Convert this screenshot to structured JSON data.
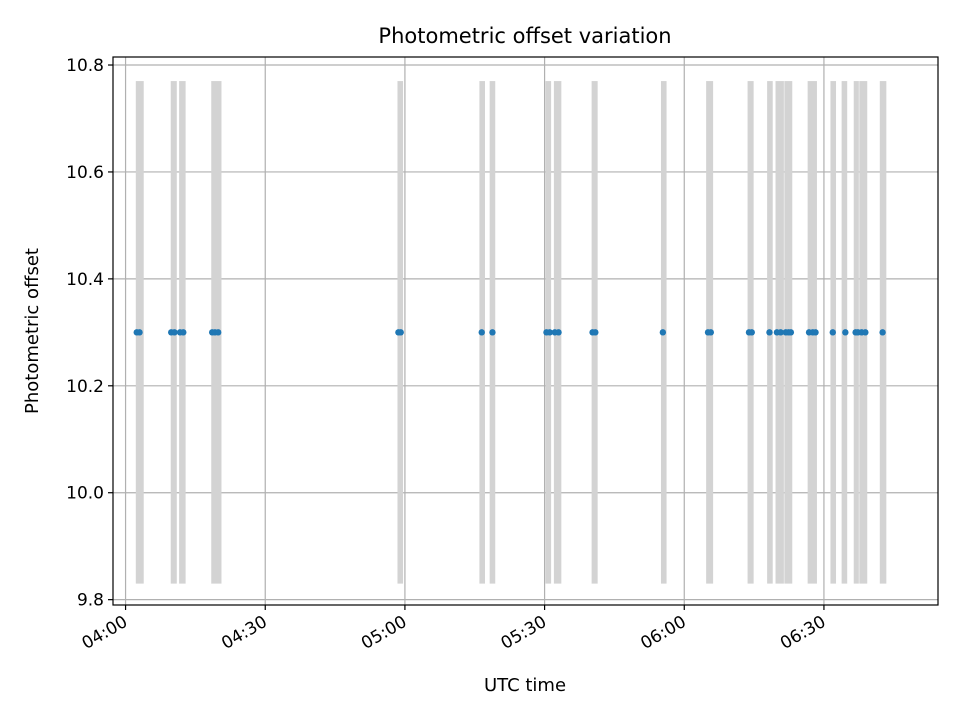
{
  "chart_data": {
    "type": "scatter",
    "title": "Photometric offset variation",
    "xlabel": "UTC time",
    "ylabel": "Photometric offset",
    "date": "",
    "xlim": [
      "03:57:18",
      "06:54:30"
    ],
    "ylim": [
      9.79,
      10.815
    ],
    "x_ticks": [
      "04:00",
      "04:30",
      "05:00",
      "05:30",
      "06:00",
      "06:30"
    ],
    "y_ticks": [
      9.8,
      10.0,
      10.2,
      10.4,
      10.6,
      10.8
    ],
    "grid": true,
    "band_range": [
      9.83,
      10.77
    ],
    "bands": [
      [
        "04:02:12",
        "04:03:54"
      ],
      [
        "04:09:42",
        "04:11:00"
      ],
      [
        "04:11:30",
        "04:12:54"
      ],
      [
        "04:18:24",
        "04:20:36"
      ],
      [
        "04:58:24",
        "04:59:36"
      ],
      [
        "05:16:00",
        "05:17:12"
      ],
      [
        "05:18:12",
        "05:19:24"
      ],
      [
        "05:30:12",
        "05:31:24"
      ],
      [
        "05:32:00",
        "05:33:36"
      ],
      [
        "05:40:06",
        "05:41:24"
      ],
      [
        "05:55:00",
        "05:56:12"
      ],
      [
        "06:04:42",
        "06:06:12"
      ],
      [
        "06:13:36",
        "06:14:54"
      ],
      [
        "06:17:48",
        "06:19:00"
      ],
      [
        "06:19:36",
        "06:21:24"
      ],
      [
        "06:21:30",
        "06:23:12"
      ],
      [
        "06:26:30",
        "06:28:30"
      ],
      [
        "06:31:24",
        "06:32:36"
      ],
      [
        "06:33:48",
        "06:35:00"
      ],
      [
        "06:36:24",
        "06:37:30"
      ],
      [
        "06:37:36",
        "06:39:18"
      ],
      [
        "06:42:00",
        "06:43:24"
      ]
    ],
    "series": [
      {
        "color": "#1f77b4",
        "points": [
          {
            "x": "04:02:24",
            "y": 10.3
          },
          {
            "x": "04:03:00",
            "y": 10.3
          },
          {
            "x": "04:09:48",
            "y": 10.3
          },
          {
            "x": "04:10:30",
            "y": 10.3
          },
          {
            "x": "04:11:42",
            "y": 10.3
          },
          {
            "x": "04:12:24",
            "y": 10.3
          },
          {
            "x": "04:18:36",
            "y": 10.3
          },
          {
            "x": "04:19:12",
            "y": 10.3
          },
          {
            "x": "04:19:54",
            "y": 10.3
          },
          {
            "x": "04:58:36",
            "y": 10.3
          },
          {
            "x": "04:59:06",
            "y": 10.3
          },
          {
            "x": "05:16:30",
            "y": 10.3
          },
          {
            "x": "05:18:48",
            "y": 10.3
          },
          {
            "x": "05:30:24",
            "y": 10.3
          },
          {
            "x": "05:31:06",
            "y": 10.3
          },
          {
            "x": "05:32:12",
            "y": 10.3
          },
          {
            "x": "05:33:00",
            "y": 10.3
          },
          {
            "x": "05:40:18",
            "y": 10.3
          },
          {
            "x": "05:40:54",
            "y": 10.3
          },
          {
            "x": "05:55:24",
            "y": 10.3
          },
          {
            "x": "06:05:06",
            "y": 10.3
          },
          {
            "x": "06:05:42",
            "y": 10.3
          },
          {
            "x": "06:13:54",
            "y": 10.3
          },
          {
            "x": "06:14:30",
            "y": 10.3
          },
          {
            "x": "06:18:18",
            "y": 10.3
          },
          {
            "x": "06:19:54",
            "y": 10.3
          },
          {
            "x": "06:20:42",
            "y": 10.3
          },
          {
            "x": "06:21:48",
            "y": 10.3
          },
          {
            "x": "06:22:24",
            "y": 10.3
          },
          {
            "x": "06:22:54",
            "y": 10.3
          },
          {
            "x": "06:26:48",
            "y": 10.3
          },
          {
            "x": "06:27:36",
            "y": 10.3
          },
          {
            "x": "06:28:12",
            "y": 10.3
          },
          {
            "x": "06:31:54",
            "y": 10.3
          },
          {
            "x": "06:34:36",
            "y": 10.3
          },
          {
            "x": "06:36:48",
            "y": 10.3
          },
          {
            "x": "06:37:18",
            "y": 10.3
          },
          {
            "x": "06:38:06",
            "y": 10.3
          },
          {
            "x": "06:38:54",
            "y": 10.3
          },
          {
            "x": "06:42:36",
            "y": 10.3
          }
        ]
      }
    ],
    "colors": {
      "band": "#d3d3d3",
      "grid": "#b0b0b0",
      "marker": "#1f77b4",
      "frame": "#000000"
    }
  }
}
